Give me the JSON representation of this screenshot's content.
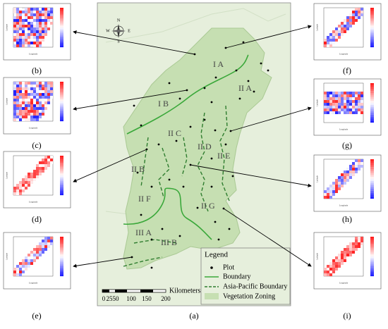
{
  "panels": {
    "a": "(a)",
    "b": "(b)",
    "c": "(c)",
    "d": "(d)",
    "e": "(e)",
    "f": "(f)",
    "g": "(g)",
    "h": "(h)",
    "i": "(i)"
  },
  "inset_axes": {
    "x_label": "Longitude",
    "y_label": "Latitude"
  },
  "zones": [
    "I A",
    "I B",
    "II A",
    "II B",
    "II C",
    "II D",
    "II E",
    "II F",
    "II G",
    "III A",
    "III B"
  ],
  "compass": {
    "n": "N",
    "s": "S",
    "w": "W",
    "e": "E"
  },
  "scale_bar": {
    "ticks": [
      "0",
      "25",
      "50",
      "100",
      "150",
      "200"
    ],
    "unit": "Kilometers"
  },
  "legend": {
    "title": "Legend",
    "items": [
      "Plot",
      "Boundary",
      "Asia-Pacific Boundary",
      "Vegetation Zoning"
    ]
  }
}
